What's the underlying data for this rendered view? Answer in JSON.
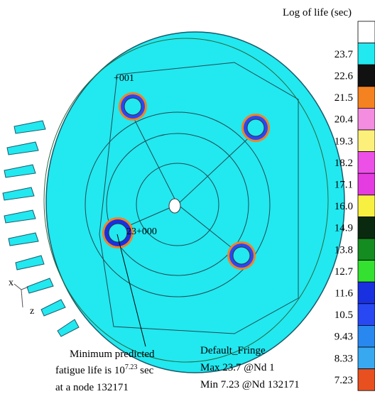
{
  "legend": {
    "title": "Log of life (sec)",
    "levels": [
      {
        "label": null,
        "color": "#ffffff"
      },
      {
        "label": "23.7",
        "color": "#22e8f0"
      },
      {
        "label": "22.6",
        "color": "#111111"
      },
      {
        "label": "21.5",
        "color": "#f58220"
      },
      {
        "label": "20.4",
        "color": "#f48ce0"
      },
      {
        "label": "19.3",
        "color": "#fcf07a"
      },
      {
        "label": "18.2",
        "color": "#ec50e6"
      },
      {
        "label": "17.1",
        "color": "#e43ce0"
      },
      {
        "label": "16.0",
        "color": "#f8f040"
      },
      {
        "label": "14.9",
        "color": "#0a2a10"
      },
      {
        "label": "13.8",
        "color": "#148c20"
      },
      {
        "label": "12.7",
        "color": "#34e030"
      },
      {
        "label": "11.6",
        "color": "#1830e0"
      },
      {
        "label": "10.5",
        "color": "#2848f4"
      },
      {
        "label": "9.43",
        "color": "#2888f0"
      },
      {
        "label": "8.33",
        "color": "#38a8f0"
      },
      {
        "label": "7.23",
        "color": "#e85020"
      }
    ]
  },
  "model_labels": [
    "+001",
    "23+000"
  ],
  "triad": [
    "x",
    "z"
  ],
  "callout": {
    "line1": "Minimum predicted",
    "line2_start": "fatigue life is 10",
    "line2_sup": "7.23",
    "line2_end": " sec",
    "line3": "at a node 132171"
  },
  "fringe_info": {
    "name": "Default_Fringe",
    "max": "Max 23.7 @Nd 1",
    "min": "Min 7.23 @Nd 132171"
  }
}
